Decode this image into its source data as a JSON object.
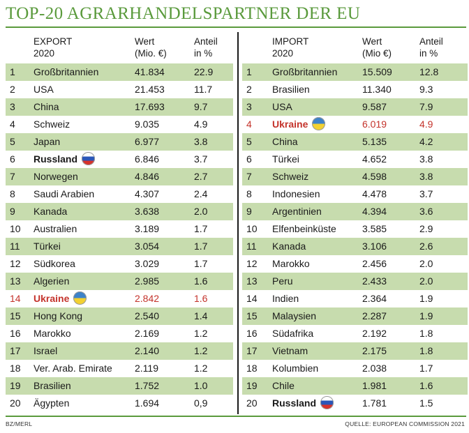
{
  "title": "TOP-20 AGRARHANDELSPARTNER DER EU",
  "footer": {
    "left": "BZ/MERL",
    "right": "QUELLE: EUROPEAN COMMISSION 2021"
  },
  "export": {
    "headers": {
      "name_1": "EXPORT",
      "name_2": "2020",
      "value_1": "Wert",
      "value_2": "(Mio. €)",
      "share_1": "Anteil",
      "share_2": "in %"
    },
    "rows": [
      {
        "rank": "1",
        "name": "Großbritannien",
        "value": "41.834",
        "share": "22.9"
      },
      {
        "rank": "2",
        "name": "USA",
        "value": "21.453",
        "share": "11.7"
      },
      {
        "rank": "3",
        "name": "China",
        "value": "17.693",
        "share": "9.7"
      },
      {
        "rank": "4",
        "name": "Schweiz",
        "value": "9.035",
        "share": "4.9"
      },
      {
        "rank": "5",
        "name": "Japan",
        "value": "6.977",
        "share": "3.8"
      },
      {
        "rank": "6",
        "name": "Russland",
        "value": "6.846",
        "share": "3.7",
        "flag": "russia-flag",
        "bold": true
      },
      {
        "rank": "7",
        "name": "Norwegen",
        "value": "4.846",
        "share": "2.7"
      },
      {
        "rank": "8",
        "name": "Saudi Arabien",
        "value": "4.307",
        "share": "2.4"
      },
      {
        "rank": "9",
        "name": "Kanada",
        "value": "3.638",
        "share": "2.0"
      },
      {
        "rank": "10",
        "name": "Australien",
        "value": "3.189",
        "share": "1.7"
      },
      {
        "rank": "11",
        "name": "Türkei",
        "value": "3.054",
        "share": "1.7"
      },
      {
        "rank": "12",
        "name": "Südkorea",
        "value": "3.029",
        "share": "1.7"
      },
      {
        "rank": "13",
        "name": "Algerien",
        "value": "2.985",
        "share": "1.6"
      },
      {
        "rank": "14",
        "name": "Ukraine",
        "value": "2.842",
        "share": "1.6",
        "flag": "ukraine-flag",
        "bold": true,
        "highlight": true
      },
      {
        "rank": "15",
        "name": "Hong Kong",
        "value": "2.540",
        "share": "1.4"
      },
      {
        "rank": "16",
        "name": "Marokko",
        "value": "2.169",
        "share": "1.2"
      },
      {
        "rank": "17",
        "name": "Israel",
        "value": "2.140",
        "share": "1.2"
      },
      {
        "rank": "18",
        "name": "Ver. Arab. Emirate",
        "value": "2.119",
        "share": "1.2"
      },
      {
        "rank": "19",
        "name": "Brasilien",
        "value": "1.752",
        "share": "1.0"
      },
      {
        "rank": "20",
        "name": "Ägypten",
        "value": "1.694",
        "share": "0,9"
      }
    ]
  },
  "import": {
    "headers": {
      "name_1": "IMPORT",
      "name_2": "2020",
      "value_1": "Wert",
      "value_2": "(Mio €)",
      "share_1": "Anteil",
      "share_2": "in %"
    },
    "rows": [
      {
        "rank": "1",
        "name": "Großbritannien",
        "value": "15.509",
        "share": "12.8"
      },
      {
        "rank": "2",
        "name": "Brasilien",
        "value": "11.340",
        "share": "9.3"
      },
      {
        "rank": "3",
        "name": "USA",
        "value": "9.587",
        "share": "7.9"
      },
      {
        "rank": "4",
        "name": "Ukraine",
        "value": "6.019",
        "share": "4.9",
        "flag": "ukraine-flag",
        "bold": true,
        "highlight": true
      },
      {
        "rank": "5",
        "name": "China",
        "value": "5.135",
        "share": "4.2"
      },
      {
        "rank": "6",
        "name": "Türkei",
        "value": "4.652",
        "share": "3.8"
      },
      {
        "rank": "7",
        "name": "Schweiz",
        "value": "4.598",
        "share": "3.8"
      },
      {
        "rank": "8",
        "name": "Indonesien",
        "value": "4.478",
        "share": "3.7"
      },
      {
        "rank": "9",
        "name": "Argentinien",
        "value": "4.394",
        "share": "3.6"
      },
      {
        "rank": "10",
        "name": "Elfenbeinküste",
        "value": "3.585",
        "share": "2.9"
      },
      {
        "rank": "11",
        "name": "Kanada",
        "value": "3.106",
        "share": "2.6"
      },
      {
        "rank": "12",
        "name": "Marokko",
        "value": "2.456",
        "share": "2.0"
      },
      {
        "rank": "13",
        "name": "Peru",
        "value": "2.433",
        "share": "2.0"
      },
      {
        "rank": "14",
        "name": "Indien",
        "value": "2.364",
        "share": "1.9"
      },
      {
        "rank": "15",
        "name": "Malaysien",
        "value": "2.287",
        "share": "1.9"
      },
      {
        "rank": "16",
        "name": "Südafrika",
        "value": "2.192",
        "share": "1.8"
      },
      {
        "rank": "17",
        "name": "Vietnam",
        "value": "2.175",
        "share": "1.8"
      },
      {
        "rank": "18",
        "name": "Kolumbien",
        "value": "2.038",
        "share": "1.7"
      },
      {
        "rank": "19",
        "name": "Chile",
        "value": "1.981",
        "share": "1.6"
      },
      {
        "rank": "20",
        "name": "Russland",
        "value": "1.781",
        "share": "1.5",
        "flag": "russia-flag",
        "bold": true
      }
    ]
  },
  "colors": {
    "accent_green": "#5a9a3c",
    "row_stripe": "#c7dcae",
    "highlight_red": "#c4332b"
  }
}
